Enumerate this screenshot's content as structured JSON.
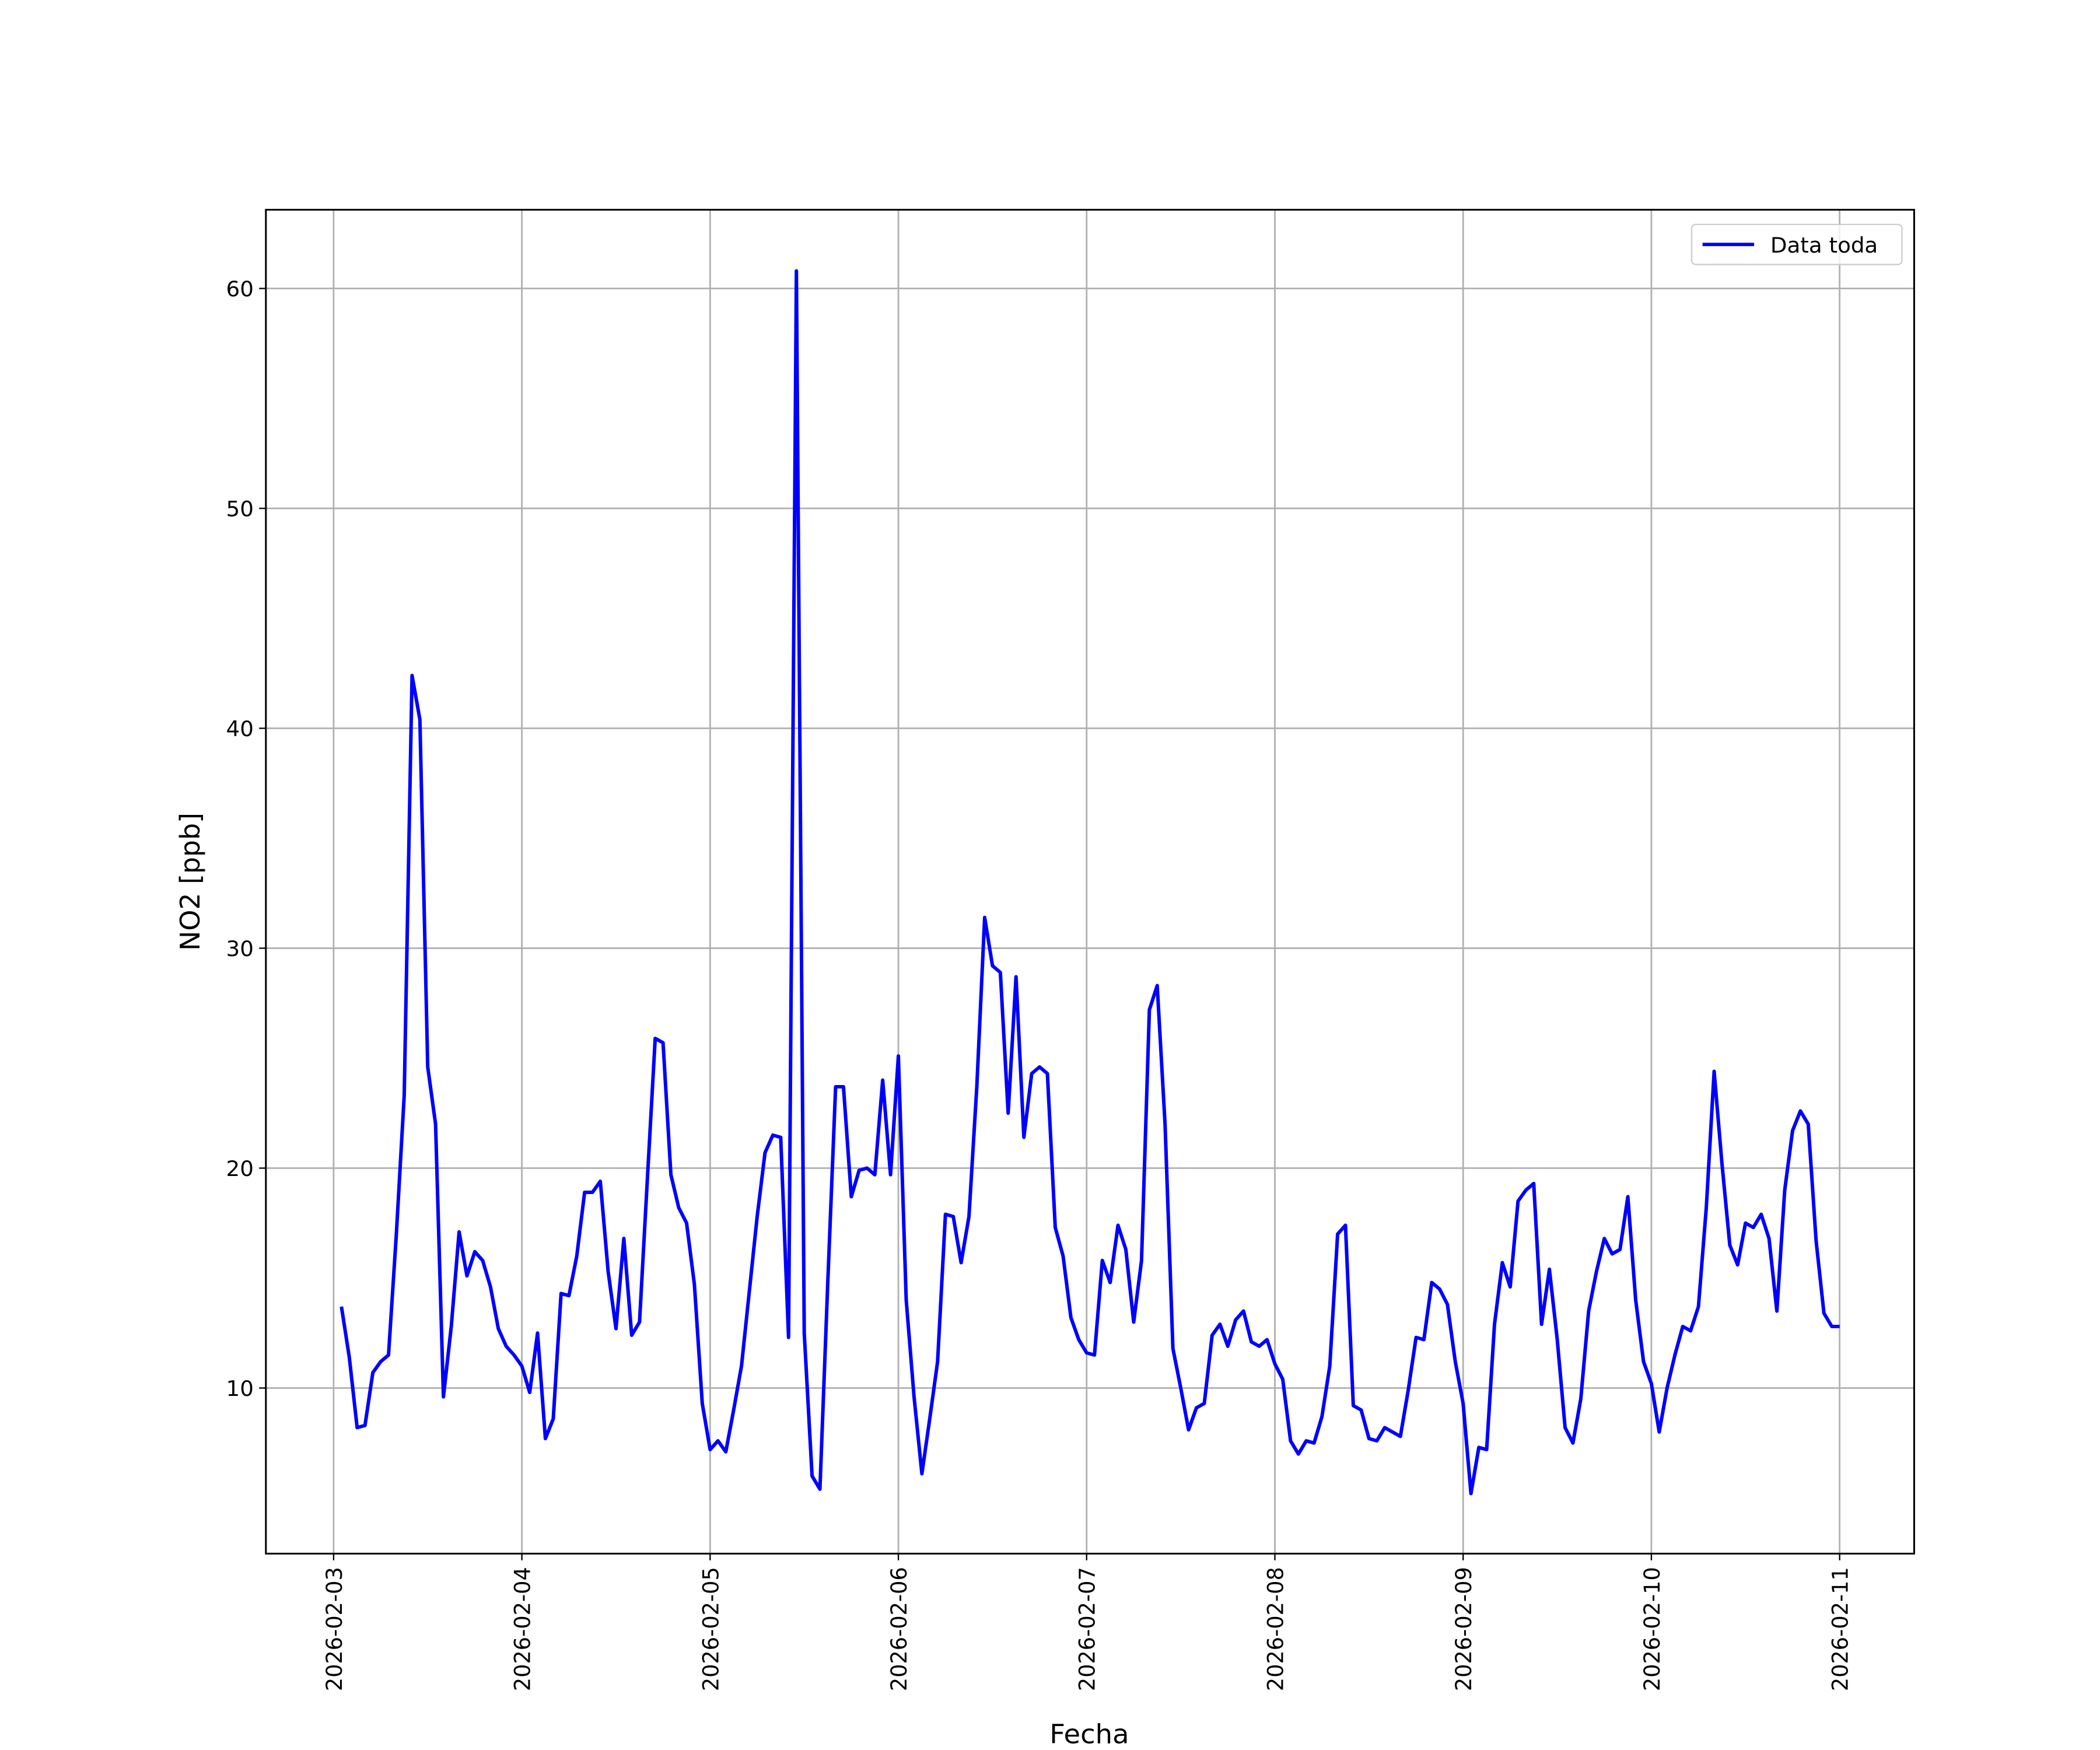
{
  "chart_data": {
    "type": "line",
    "xlabel": "Fecha",
    "ylabel": "NO2 [ppb]",
    "x": [
      "2026-02-03 01:00",
      "2026-02-03 02:00",
      "2026-02-03 03:00",
      "2026-02-03 04:00",
      "2026-02-03 05:00",
      "2026-02-03 06:00",
      "2026-02-03 07:00",
      "2026-02-03 08:00",
      "2026-02-03 09:00",
      "2026-02-03 10:00",
      "2026-02-03 11:00",
      "2026-02-03 12:00",
      "2026-02-03 13:00",
      "2026-02-03 14:00",
      "2026-02-03 15:00",
      "2026-02-03 16:00",
      "2026-02-03 17:00",
      "2026-02-03 18:00",
      "2026-02-03 19:00",
      "2026-02-03 20:00",
      "2026-02-03 21:00",
      "2026-02-03 22:00",
      "2026-02-03 23:00",
      "2026-02-04 00:00",
      "2026-02-04 01:00",
      "2026-02-04 02:00",
      "2026-02-04 03:00",
      "2026-02-04 04:00",
      "2026-02-04 05:00",
      "2026-02-04 06:00",
      "2026-02-04 07:00",
      "2026-02-04 08:00",
      "2026-02-04 09:00",
      "2026-02-04 10:00",
      "2026-02-04 11:00",
      "2026-02-04 12:00",
      "2026-02-04 13:00",
      "2026-02-04 14:00",
      "2026-02-04 15:00",
      "2026-02-04 16:00",
      "2026-02-04 17:00",
      "2026-02-04 18:00",
      "2026-02-04 19:00",
      "2026-02-04 20:00",
      "2026-02-04 21:00",
      "2026-02-04 22:00",
      "2026-02-04 23:00",
      "2026-02-05 00:00",
      "2026-02-05 01:00",
      "2026-02-05 02:00",
      "2026-02-05 03:00",
      "2026-02-05 04:00",
      "2026-02-05 05:00",
      "2026-02-05 06:00",
      "2026-02-05 07:00",
      "2026-02-05 08:00",
      "2026-02-05 09:00",
      "2026-02-05 10:00",
      "2026-02-05 11:00",
      "2026-02-05 12:00",
      "2026-02-05 13:00",
      "2026-02-05 14:00",
      "2026-02-05 15:00",
      "2026-02-05 16:00",
      "2026-02-05 17:00",
      "2026-02-05 18:00",
      "2026-02-05 19:00",
      "2026-02-05 20:00",
      "2026-02-05 21:00",
      "2026-02-05 22:00",
      "2026-02-05 23:00",
      "2026-02-06 00:00",
      "2026-02-06 01:00",
      "2026-02-06 02:00",
      "2026-02-06 03:00",
      "2026-02-06 04:00",
      "2026-02-06 05:00",
      "2026-02-06 06:00",
      "2026-02-06 07:00",
      "2026-02-06 08:00",
      "2026-02-06 09:00",
      "2026-02-06 10:00",
      "2026-02-06 11:00",
      "2026-02-06 12:00",
      "2026-02-06 13:00",
      "2026-02-06 14:00",
      "2026-02-06 15:00",
      "2026-02-06 16:00",
      "2026-02-06 17:00",
      "2026-02-06 18:00",
      "2026-02-06 19:00",
      "2026-02-06 20:00",
      "2026-02-06 21:00",
      "2026-02-06 22:00",
      "2026-02-06 23:00",
      "2026-02-07 00:00",
      "2026-02-07 01:00",
      "2026-02-07 02:00",
      "2026-02-07 03:00",
      "2026-02-07 04:00",
      "2026-02-07 05:00",
      "2026-02-07 06:00",
      "2026-02-07 07:00",
      "2026-02-07 08:00",
      "2026-02-07 09:00",
      "2026-02-07 10:00",
      "2026-02-07 11:00",
      "2026-02-07 12:00",
      "2026-02-07 13:00",
      "2026-02-07 14:00",
      "2026-02-07 15:00",
      "2026-02-07 16:00",
      "2026-02-07 17:00",
      "2026-02-07 18:00",
      "2026-02-07 19:00",
      "2026-02-07 20:00",
      "2026-02-07 21:00",
      "2026-02-07 22:00",
      "2026-02-07 23:00",
      "2026-02-08 00:00",
      "2026-02-08 01:00",
      "2026-02-08 02:00",
      "2026-02-08 03:00",
      "2026-02-08 04:00",
      "2026-02-08 05:00",
      "2026-02-08 06:00",
      "2026-02-08 07:00",
      "2026-02-08 08:00",
      "2026-02-08 09:00",
      "2026-02-08 10:00",
      "2026-02-08 11:00",
      "2026-02-08 12:00",
      "2026-02-08 13:00",
      "2026-02-08 14:00",
      "2026-02-08 15:00",
      "2026-02-08 16:00",
      "2026-02-08 17:00",
      "2026-02-08 18:00",
      "2026-02-08 19:00",
      "2026-02-08 20:00",
      "2026-02-08 21:00",
      "2026-02-08 22:00",
      "2026-02-08 23:00",
      "2026-02-09 00:00",
      "2026-02-09 01:00",
      "2026-02-09 02:00",
      "2026-02-09 03:00",
      "2026-02-09 04:00",
      "2026-02-09 05:00",
      "2026-02-09 06:00",
      "2026-02-09 07:00",
      "2026-02-09 08:00",
      "2026-02-09 09:00",
      "2026-02-09 10:00",
      "2026-02-09 11:00",
      "2026-02-09 12:00",
      "2026-02-09 13:00",
      "2026-02-09 14:00",
      "2026-02-09 15:00",
      "2026-02-09 16:00",
      "2026-02-09 17:00",
      "2026-02-09 18:00",
      "2026-02-09 19:00",
      "2026-02-09 20:00",
      "2026-02-09 21:00",
      "2026-02-09 22:00",
      "2026-02-09 23:00",
      "2026-02-10 00:00",
      "2026-02-10 01:00",
      "2026-02-10 02:00",
      "2026-02-10 03:00",
      "2026-02-10 04:00",
      "2026-02-10 05:00",
      "2026-02-10 06:00",
      "2026-02-10 07:00",
      "2026-02-10 08:00",
      "2026-02-10 09:00",
      "2026-02-10 10:00",
      "2026-02-10 11:00",
      "2026-02-10 12:00",
      "2026-02-10 13:00",
      "2026-02-10 14:00",
      "2026-02-10 15:00",
      "2026-02-10 16:00",
      "2026-02-10 17:00",
      "2026-02-10 18:00",
      "2026-02-10 19:00",
      "2026-02-10 20:00",
      "2026-02-10 21:00",
      "2026-02-10 22:00",
      "2026-02-10 23:00",
      "2026-02-11 00:00"
    ],
    "series": [
      {
        "name": "Data toda",
        "color": "#0000ff",
        "values": [
          13.7,
          11.4,
          8.2,
          8.3,
          10.7,
          11.2,
          11.5,
          17,
          23.3,
          42.4,
          40.4,
          24.6,
          22,
          9.6,
          12.8,
          17.1,
          15.1,
          16.2,
          15.8,
          14.6,
          12.7,
          11.9,
          11.5,
          11.0,
          9.8,
          12.5,
          7.7,
          8.6,
          14.3,
          14.2,
          16,
          18.9,
          18.9,
          19.4,
          15.3,
          12.7,
          16.8,
          12.4,
          13,
          19.5,
          25.9,
          25.7,
          19.7,
          18.2,
          17.5,
          14.7,
          9.3,
          7.2,
          7.6,
          7.1,
          9,
          11,
          14.4,
          17.8,
          20.7,
          21.5,
          21.4,
          12.3,
          60.8,
          12.5,
          6,
          5.4,
          14.8,
          23.7,
          23.7,
          18.7,
          19.9,
          20,
          19.7,
          24,
          19.7,
          25.1,
          14,
          9.6,
          6.1,
          8.6,
          11.2,
          17.9,
          17.8,
          15.7,
          17.8,
          23.7,
          31.4,
          29.2,
          28.9,
          22.5,
          28.7,
          21.4,
          24.3,
          24.6,
          24.3,
          17.3,
          16,
          13.2,
          12.2,
          11.6,
          11.5,
          15.8,
          14.8,
          17.4,
          16.3,
          13,
          15.8,
          27.2,
          28.3,
          22,
          11.8,
          10,
          8.1,
          9.1,
          9.3,
          12.4,
          12.9,
          11.9,
          13.1,
          13.5,
          12.1,
          11.9,
          12.2,
          11.1,
          10.4,
          7.6,
          7,
          7.6,
          7.5,
          8.7,
          11,
          17,
          17.4,
          9.2,
          9,
          7.7,
          7.6,
          8.2,
          8,
          7.8,
          9.9,
          12.3,
          12.2,
          14.8,
          14.5,
          13.8,
          11.2,
          9.3,
          5.2,
          7.3,
          7.2,
          12.9,
          15.7,
          14.6,
          18.5,
          19,
          19.3,
          12.9,
          15.4,
          12.2,
          8.2,
          7.5,
          9.5,
          13.5,
          15.3,
          16.8,
          16.1,
          16.3,
          18.7,
          14,
          11.2,
          10.2,
          8,
          10,
          11.5,
          12.8,
          12.6,
          13.7,
          18.2,
          24.4,
          20.2,
          16.5,
          15.6,
          17.5,
          17.3,
          17.9,
          16.8,
          13.5,
          19,
          21.7,
          22.6,
          22,
          16.7,
          13.4,
          12.8,
          12.8
        ]
      }
    ],
    "xlim": [
      "2026-02-02 15:22",
      "2026-02-11 09:30"
    ],
    "xticks": [
      "2026-02-03",
      "2026-02-04",
      "2026-02-05",
      "2026-02-06",
      "2026-02-07",
      "2026-02-08",
      "2026-02-09",
      "2026-02-10",
      "2026-02-11"
    ],
    "ylim": [
      2.47,
      63.58
    ],
    "yticks": [
      10,
      20,
      30,
      40,
      50,
      60
    ],
    "grid": true,
    "legend": "upper right"
  }
}
